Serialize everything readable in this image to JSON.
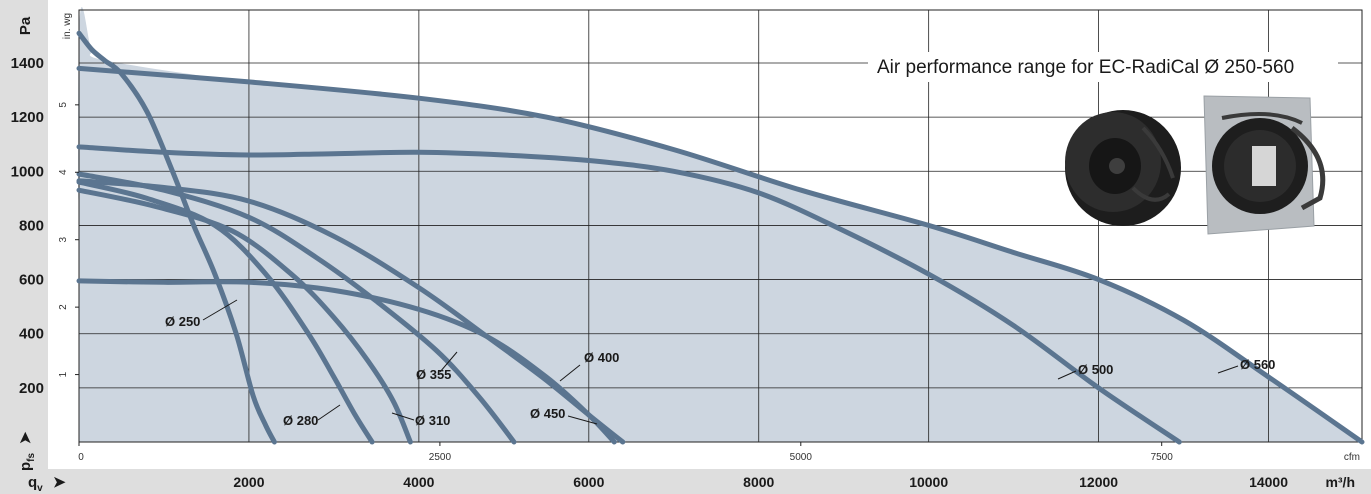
{
  "chart_data": {
    "type": "line",
    "title": "Air performance range for EC-RadiCal Ø 250-560",
    "y_label": "Pa",
    "y_secondary_label": "in. wg",
    "y_bottom_symbol": "p",
    "y_bottom_subscript": "fs",
    "y_arrow": "➤",
    "x_label_symbol": "q",
    "x_label_subscript": "v",
    "x_arrow": "➤",
    "x_unit": "m³/h",
    "x_secondary_unit": "cfm",
    "x_ticks": [
      2000,
      4000,
      6000,
      8000,
      10000,
      12000,
      14000
    ],
    "x_secondary_ticks": [
      "0",
      "2500",
      "5000",
      "7500"
    ],
    "y_ticks": [
      200,
      400,
      600,
      800,
      1000,
      1200,
      1400
    ],
    "y_secondary_ticks": [
      "1",
      "2",
      "3",
      "4",
      "5"
    ],
    "xlim": [
      0,
      15100
    ],
    "ylim": [
      0,
      1520
    ],
    "grid": true,
    "colors": {
      "curve": "#5b7590",
      "fill": "#cdd6e0",
      "grid": "#222222",
      "band": "#dedede"
    },
    "series": [
      {
        "name": "Ø 250",
        "label": "Ø 250",
        "x": [
          0,
          150,
          300,
          500,
          800,
          1100,
          1350,
          1600,
          1850,
          2050,
          2200,
          2300
        ],
        "y": [
          1510,
          1450,
          1410,
          1360,
          1220,
          1000,
          800,
          620,
          400,
          170,
          60,
          0
        ]
      },
      {
        "name": "Ø 280",
        "label": "Ø 280",
        "x": [
          0,
          800,
          1600,
          2200,
          2700,
          3000,
          3250,
          3450
        ],
        "y": [
          960,
          900,
          800,
          620,
          400,
          240,
          100,
          0
        ]
      },
      {
        "name": "Ø 310",
        "label": "Ø 310",
        "x": [
          0,
          900,
          1800,
          2500,
          3000,
          3400,
          3700,
          3900
        ],
        "y": [
          930,
          870,
          780,
          620,
          460,
          300,
          150,
          0
        ]
      },
      {
        "name": "Ø 355",
        "label": "Ø 355",
        "x": [
          0,
          1000,
          2000,
          2800,
          3500,
          4200,
          4700,
          5120
        ],
        "y": [
          990,
          930,
          830,
          680,
          520,
          340,
          170,
          0
        ]
      },
      {
        "name": "Ø 400",
        "label": "Ø 400",
        "x": [
          0,
          1000,
          2000,
          3000,
          4000,
          4800,
          5450,
          6000,
          6400
        ],
        "y": [
          965,
          940,
          890,
          760,
          570,
          390,
          240,
          100,
          0
        ]
      },
      {
        "name": "Ø 450",
        "label": "Ø 450",
        "x": [
          0,
          1000,
          2000,
          3000,
          4000,
          4800,
          5500,
          6000,
          6300
        ],
        "y": [
          595,
          590,
          590,
          560,
          490,
          390,
          240,
          100,
          0
        ]
      },
      {
        "name": "Ø 500",
        "label": "Ø 500",
        "x": [
          0,
          1000,
          2000,
          3000,
          4000,
          5000,
          6000,
          7000,
          8000,
          9000,
          10000,
          11000,
          12000,
          12950
        ],
        "y": [
          1090,
          1070,
          1060,
          1065,
          1070,
          1060,
          1040,
          1000,
          920,
          780,
          620,
          430,
          200,
          0
        ]
      },
      {
        "name": "Ø 560",
        "label": "Ø 560",
        "x": [
          0,
          2000,
          4000,
          5500,
          7000,
          8500,
          10000,
          11000,
          12000,
          13000,
          14000,
          15100
        ],
        "y": [
          1380,
          1330,
          1270,
          1200,
          1080,
          930,
          800,
          700,
          600,
          450,
          240,
          0
        ]
      }
    ]
  }
}
